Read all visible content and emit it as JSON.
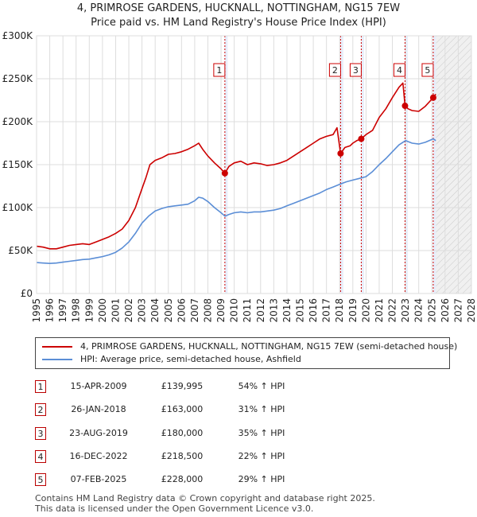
{
  "chart_data": {
    "type": "line",
    "title": "4, PRIMROSE GARDENS, HUCKNALL, NOTTINGHAM, NG15 7EW",
    "subtitle": "Price paid vs. HM Land Registry's House Price Index (HPI)",
    "xlim": [
      1995,
      2028
    ],
    "ylim": [
      0,
      300000
    ],
    "x_ticks": [
      "1995",
      "1996",
      "1997",
      "1998",
      "1999",
      "2000",
      "2001",
      "2002",
      "2003",
      "2004",
      "2005",
      "2006",
      "2007",
      "2008",
      "2009",
      "2010",
      "2011",
      "2012",
      "2013",
      "2014",
      "2015",
      "2016",
      "2017",
      "2018",
      "2019",
      "2020",
      "2021",
      "2022",
      "2023",
      "2024",
      "2025",
      "2026",
      "2027",
      "2028"
    ],
    "y_ticks": [
      {
        "value": 0,
        "label": "£0"
      },
      {
        "value": 50000,
        "label": "£50K"
      },
      {
        "value": 100000,
        "label": "£100K"
      },
      {
        "value": 150000,
        "label": "£150K"
      },
      {
        "value": 200000,
        "label": "£200K"
      },
      {
        "value": 250000,
        "label": "£250K"
      },
      {
        "value": 300000,
        "label": "£300K"
      }
    ],
    "grid": true,
    "shaded_future_from": 2025.1,
    "series": [
      {
        "name": "4, PRIMROSE GARDENS, HUCKNALL, NOTTINGHAM, NG15 7EW (semi-detached house)",
        "color": "#cc0000",
        "x": [
          1995,
          1995.5,
          1996,
          1996.5,
          1997,
          1997.5,
          1998,
          1998.5,
          1999,
          1999.5,
          2000,
          2000.5,
          2001,
          2001.5,
          2002,
          2002.5,
          2003,
          2003.3,
          2003.6,
          2004,
          2004.5,
          2005,
          2005.5,
          2006,
          2006.5,
          2007,
          2007.3,
          2007.6,
          2008,
          2008.5,
          2009,
          2009.29,
          2009.6,
          2010,
          2010.5,
          2011,
          2011.5,
          2012,
          2012.5,
          2013,
          2013.5,
          2014,
          2014.5,
          2015,
          2015.5,
          2016,
          2016.5,
          2017,
          2017.5,
          2017.8,
          2018.07,
          2018.4,
          2018.8,
          2019,
          2019.3,
          2019.64,
          2020,
          2020.5,
          2021,
          2021.5,
          2022,
          2022.5,
          2022.8,
          2022.96,
          2023.2,
          2023.5,
          2024,
          2024.5,
          2025.1,
          2025.3
        ],
        "values": [
          55000,
          54000,
          52000,
          52000,
          54000,
          56000,
          57000,
          58000,
          57000,
          60000,
          63000,
          66000,
          70000,
          75000,
          85000,
          100000,
          122000,
          135000,
          150000,
          155000,
          158000,
          162000,
          163000,
          165000,
          168000,
          172000,
          175000,
          168000,
          160000,
          152000,
          145000,
          139995,
          148000,
          152000,
          154000,
          150000,
          152000,
          151000,
          149000,
          150000,
          152000,
          155000,
          160000,
          165000,
          170000,
          175000,
          180000,
          183000,
          185000,
          193000,
          163000,
          170000,
          172000,
          175000,
          178000,
          180000,
          185000,
          190000,
          205000,
          215000,
          228000,
          240000,
          245000,
          218500,
          215000,
          213000,
          212000,
          218000,
          228000,
          232000
        ]
      },
      {
        "name": "HPI: Average price, semi-detached house, Ashfield",
        "color": "#5b8ed6",
        "x": [
          1995,
          1995.5,
          1996,
          1996.5,
          1997,
          1997.5,
          1998,
          1998.5,
          1999,
          1999.5,
          2000,
          2000.5,
          2001,
          2001.5,
          2002,
          2002.5,
          2003,
          2003.5,
          2004,
          2004.5,
          2005,
          2005.5,
          2006,
          2006.5,
          2007,
          2007.3,
          2007.6,
          2008,
          2008.5,
          2009,
          2009.3,
          2009.6,
          2010,
          2010.5,
          2011,
          2011.5,
          2012,
          2012.5,
          2013,
          2013.5,
          2014,
          2014.5,
          2015,
          2015.5,
          2016,
          2016.5,
          2017,
          2017.5,
          2018,
          2018.5,
          2019,
          2019.5,
          2020,
          2020.5,
          2021,
          2021.5,
          2022,
          2022.5,
          2023,
          2023.5,
          2024,
          2024.5,
          2025.1,
          2025.3
        ],
        "values": [
          36000,
          35500,
          35000,
          35500,
          36500,
          37500,
          38500,
          39500,
          40000,
          41500,
          43000,
          45000,
          48000,
          53000,
          60000,
          70000,
          82000,
          90000,
          96000,
          99000,
          101000,
          102000,
          103000,
          104000,
          108000,
          112000,
          111000,
          107000,
          100000,
          94000,
          90000,
          92000,
          94000,
          95000,
          94000,
          95000,
          95000,
          96000,
          97000,
          99000,
          102000,
          105000,
          108000,
          111000,
          114000,
          117000,
          121000,
          124000,
          127000,
          130000,
          132000,
          134000,
          136000,
          142000,
          150000,
          157000,
          165000,
          173000,
          178000,
          175000,
          174000,
          176000,
          180000,
          178000
        ]
      }
    ],
    "sale_markers": [
      {
        "label": "1",
        "x": 2009.29,
        "value": 139995
      },
      {
        "label": "2",
        "x": 2018.07,
        "value": 163000
      },
      {
        "label": "3",
        "x": 2019.64,
        "value": 180000
      },
      {
        "label": "4",
        "x": 2022.96,
        "value": 218500
      },
      {
        "label": "5",
        "x": 2025.1,
        "value": 228000
      }
    ]
  },
  "legend": {
    "property_label": "4, PRIMROSE GARDENS, HUCKNALL, NOTTINGHAM, NG15 7EW (semi-detached house)",
    "hpi_label": "HPI: Average price, semi-detached house, Ashfield"
  },
  "transactions": [
    {
      "num": "1",
      "date": "15-APR-2009",
      "price": "£139,995",
      "pct": "54% ↑ HPI"
    },
    {
      "num": "2",
      "date": "26-JAN-2018",
      "price": "£163,000",
      "pct": "31% ↑ HPI"
    },
    {
      "num": "3",
      "date": "23-AUG-2019",
      "price": "£180,000",
      "pct": "35% ↑ HPI"
    },
    {
      "num": "4",
      "date": "16-DEC-2022",
      "price": "£218,500",
      "pct": "22% ↑ HPI"
    },
    {
      "num": "5",
      "date": "07-FEB-2025",
      "price": "£228,000",
      "pct": "29% ↑ HPI"
    }
  ],
  "footer": {
    "line1": "Contains HM Land Registry data © Crown copyright and database right 2025.",
    "line2": "This data is licensed under the Open Government Licence v3.0."
  }
}
